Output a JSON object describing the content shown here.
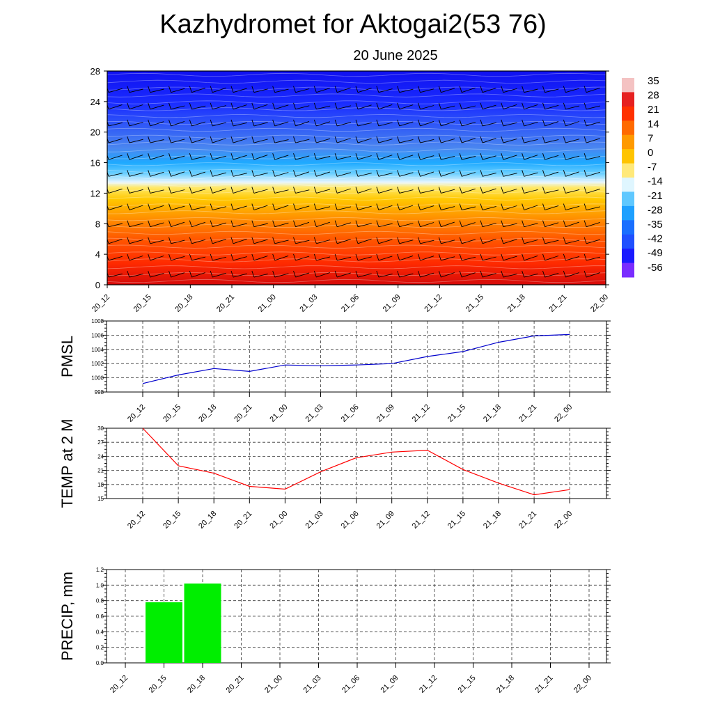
{
  "title": "Kazhydromet for Aktogai2(53 76)",
  "subtitle": "20 June 2025",
  "time_labels": [
    "20_12",
    "20_15",
    "20_18",
    "20_21",
    "21_00",
    "21_03",
    "21_06",
    "21_09",
    "21_12",
    "21_15",
    "21_18",
    "21_21",
    "22_00"
  ],
  "chart_data": [
    {
      "type": "heatmap",
      "name": "temperature-height cross section",
      "x": [
        "20_12",
        "20_15",
        "20_18",
        "20_21",
        "21_00",
        "21_03",
        "21_06",
        "21_09",
        "21_12",
        "21_15",
        "21_18",
        "21_21",
        "22_00"
      ],
      "y_ticks": [
        0,
        4,
        8,
        12,
        16,
        20,
        24,
        28
      ],
      "ylim": [
        0,
        28
      ],
      "freezing_level": [
        13,
        13,
        13,
        13,
        12.8,
        12.6,
        12.5,
        12.6,
        12.8,
        12.9,
        13,
        13,
        13
      ],
      "colorbar_labels": [
        "35",
        "28",
        "21",
        "14",
        "7",
        "0",
        "-7",
        "-14",
        "-21",
        "-28",
        "-35",
        "-42",
        "-49",
        "-56"
      ],
      "colorbar_colors": [
        "#f4c2c2",
        "#e62020",
        "#ff3000",
        "#ff6a00",
        "#ff9a00",
        "#ffc400",
        "#ffe97a",
        "#dff6ff",
        "#5fc8ff",
        "#1ea0ff",
        "#1a6fff",
        "#2050ff",
        "#1a1aff",
        "#7a2cff"
      ],
      "wind_barbs": true,
      "grid": false
    },
    {
      "type": "line",
      "ylabel": "PMSL",
      "x": [
        "20_12",
        "20_15",
        "20_18",
        "20_21",
        "21_00",
        "21_03",
        "21_06",
        "21_09",
        "21_12",
        "21_15",
        "21_18",
        "21_21",
        "22_00"
      ],
      "values": [
        999.2,
        1000.4,
        1001.3,
        1000.9,
        1001.8,
        1001.7,
        1001.8,
        1002.0,
        1003.0,
        1003.7,
        1005.0,
        1005.9,
        1006.1
      ],
      "ylim": [
        998,
        1008
      ],
      "y_ticks": [
        998,
        1000,
        1002,
        1004,
        1006,
        1008
      ],
      "color": "#0000cc",
      "grid": true
    },
    {
      "type": "line",
      "ylabel": "TEMP at 2 M",
      "x": [
        "20_12",
        "20_15",
        "20_18",
        "20_21",
        "21_00",
        "21_03",
        "21_06",
        "21_09",
        "21_12",
        "21_15",
        "21_18",
        "21_21",
        "22_00"
      ],
      "values": [
        30.0,
        22.0,
        20.4,
        17.6,
        17.0,
        20.7,
        23.7,
        24.9,
        25.3,
        21.2,
        18.3,
        15.8,
        16.9
      ],
      "ylim": [
        15,
        30
      ],
      "y_ticks": [
        15,
        18,
        21,
        24,
        27,
        30
      ],
      "color": "#ff0000",
      "grid": true
    },
    {
      "type": "bar",
      "ylabel": "PRECIP, mm",
      "categories": [
        "20_12",
        "20_15",
        "20_18",
        "20_21",
        "21_00",
        "21_03",
        "21_06",
        "21_09",
        "21_12",
        "21_15",
        "21_18",
        "21_21",
        "22_00"
      ],
      "values": [
        0,
        0.78,
        1.02,
        0,
        0,
        0,
        0,
        0,
        0,
        0,
        0,
        0,
        0
      ],
      "ylim": [
        0,
        1.2
      ],
      "y_ticks": [
        "0.0",
        "0.2",
        "0.4",
        "0.6",
        "0.8",
        "1.0",
        "1.2"
      ],
      "color": "#00ee00",
      "grid": true
    }
  ]
}
